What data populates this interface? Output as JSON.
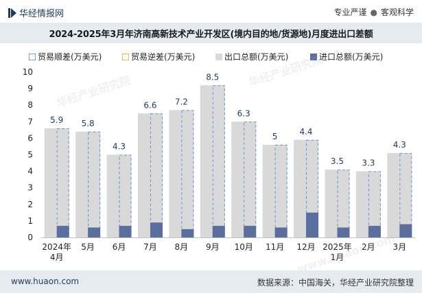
{
  "header": {
    "brand": "华经情报网",
    "tag_left": "专业严谨",
    "tag_sep": "●",
    "tag_right": "客观科学"
  },
  "footer": {
    "site": "www.huaon.com",
    "source": "数据来源：中国海关，华经产业研究院整理"
  },
  "watermarks": [
    "华经产业研究院",
    "华经产业研究院",
    "www.huaon.com"
  ],
  "colors": {
    "export": "#d9d9d9",
    "import": "#5b6f9f",
    "surplus": "#6b93c8",
    "deficit": "#d9b34a"
  },
  "chart_data": {
    "type": "bar",
    "title": "2024-2025年3月年济南高新技术产业开发区(境内目的地/货源地)月度进出口差额",
    "categories": [
      "2024年\n4月",
      "5月",
      "6月",
      "7月",
      "8月",
      "9月",
      "10月",
      "11月",
      "12月",
      "2025年\n1月",
      "2月",
      "3月"
    ],
    "series": [
      {
        "name": "贸易顺差(万美元)",
        "values": [
          5.9,
          5.8,
          4.3,
          6.6,
          7.2,
          8.5,
          6.3,
          5,
          4.4,
          3.5,
          3.3,
          4.3
        ]
      },
      {
        "name": "贸易逆差(万美元)",
        "values": [
          0,
          0,
          0,
          0,
          0,
          0,
          0,
          0,
          0,
          0,
          0,
          0
        ]
      },
      {
        "name": "出口总额(万美元)",
        "values": [
          6.6,
          6.4,
          5.0,
          7.5,
          7.7,
          9.2,
          7.0,
          5.6,
          5.9,
          4.1,
          4.0,
          5.1
        ]
      },
      {
        "name": "进口总额(万美元)",
        "values": [
          0.7,
          0.6,
          0.7,
          0.9,
          0.5,
          0.7,
          0.7,
          0.6,
          1.5,
          0.6,
          0.7,
          0.8
        ]
      }
    ],
    "labels": [
      "5.9",
      "5.8",
      "4.3",
      "6.6",
      "7.2",
      "8.5",
      "6.3",
      "5",
      "4.4",
      "3.5",
      "3.3",
      "4.3"
    ],
    "yticks": [
      0,
      1,
      2,
      3,
      4,
      5,
      6,
      7,
      8,
      9,
      10
    ],
    "ylim": [
      0,
      10
    ],
    "legend_position": "top"
  }
}
